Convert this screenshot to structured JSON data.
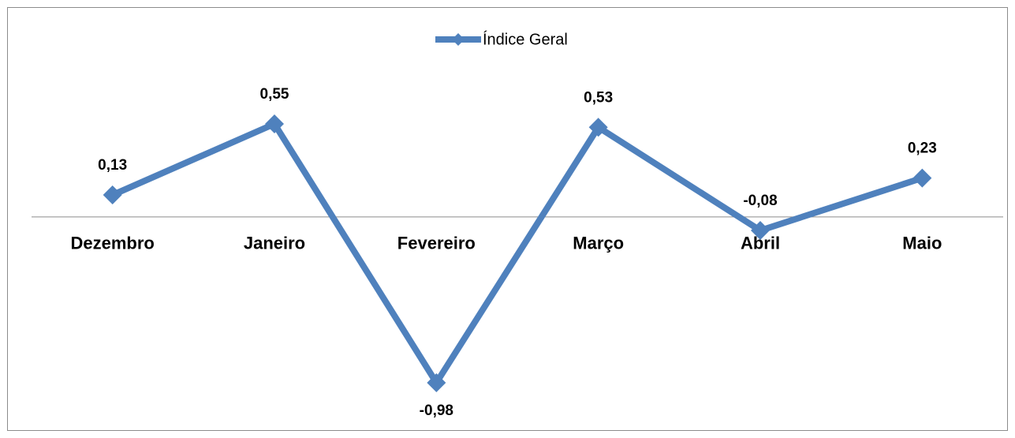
{
  "chart_data": {
    "type": "line",
    "categories": [
      "Dezembro",
      "Janeiro",
      "Fevereiro",
      "Março",
      "Abril",
      "Maio"
    ],
    "series": [
      {
        "name": "Índice Geral",
        "color": "#4f81bd",
        "values": [
          0.13,
          0.55,
          -0.98,
          0.53,
          -0.08,
          0.23
        ],
        "value_labels": [
          "0,13",
          "0,55",
          "-0,98",
          "0,53",
          "-0,08",
          "0,23"
        ]
      }
    ]
  }
}
